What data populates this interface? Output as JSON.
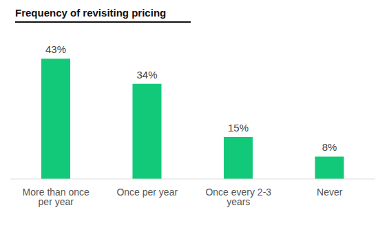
{
  "chart_data": {
    "type": "bar",
    "title": "Frequency of revisiting pricing",
    "categories": [
      "More than once per year",
      "Once per year",
      "Once every 2-3 years",
      "Never"
    ],
    "values": [
      43,
      34,
      15,
      8
    ],
    "value_labels": [
      "43%",
      "34%",
      "15%",
      "8%"
    ],
    "color": "#12c97a",
    "ylim": [
      0,
      45
    ],
    "grid": false,
    "data_labels": true,
    "tick_labels": "x"
  }
}
